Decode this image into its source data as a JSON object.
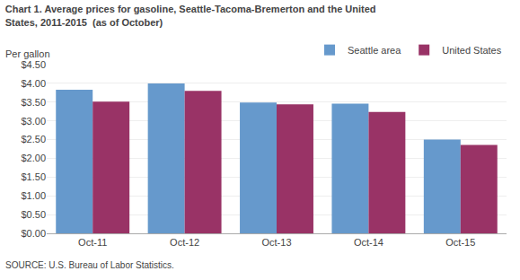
{
  "chart_data": {
    "type": "bar",
    "title": "Chart 1. Average prices for gasoline, Seattle-Tacoma-Bremerton and the United\nStates, 2011-2015  (as of October)",
    "y_label": "Per gallon",
    "source": "SOURCE: U.S. Bureau of Labor Statistics.",
    "categories": [
      "Oct-11",
      "Oct-12",
      "Oct-13",
      "Oct-14",
      "Oct-15"
    ],
    "series": [
      {
        "name": "Seattle area",
        "color": "#6699cc",
        "values": [
          3.83,
          4.0,
          3.49,
          3.46,
          2.5
        ]
      },
      {
        "name": "United States",
        "color": "#993366",
        "values": [
          3.51,
          3.8,
          3.44,
          3.24,
          2.36
        ]
      }
    ],
    "ylim": [
      0.0,
      4.5
    ],
    "yticks": [
      {
        "value": 0.0,
        "label": "$0.00"
      },
      {
        "value": 0.5,
        "label": "$0.50"
      },
      {
        "value": 1.0,
        "label": "$1.00"
      },
      {
        "value": 1.5,
        "label": "$1.50"
      },
      {
        "value": 2.0,
        "label": "$2.00"
      },
      {
        "value": 2.5,
        "label": "$2.50"
      },
      {
        "value": 3.0,
        "label": "$3.00"
      },
      {
        "value": 3.5,
        "label": "$3.50"
      },
      {
        "value": 4.0,
        "label": "$4.00"
      },
      {
        "value": 4.5,
        "label": "$4.50"
      }
    ],
    "grid": true,
    "legend": "upper right"
  }
}
